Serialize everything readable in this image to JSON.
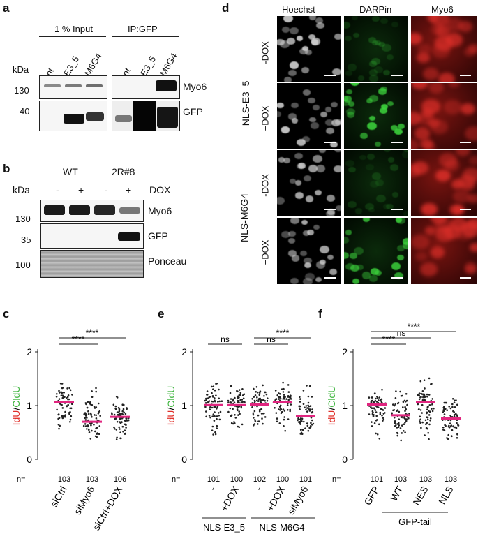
{
  "panels": {
    "a": {
      "letter": "a",
      "group_input": "1 % Input",
      "group_ip": "IP:GFP",
      "lanes": [
        "nt",
        "E3_5",
        "M6G4",
        "nt",
        "E3_5",
        "M6G4"
      ],
      "kda_label": "kDa",
      "markers": [
        "130",
        "40"
      ],
      "rows": [
        "Myo6",
        "GFP"
      ]
    },
    "b": {
      "letter": "b",
      "groups": [
        "WT",
        "2R#8"
      ],
      "dox_signs": [
        "-",
        "+",
        "-",
        "+"
      ],
      "dox_label": "DOX",
      "kda_label": "kDa",
      "markers": [
        "130",
        "35",
        "100"
      ],
      "rows": [
        "Myo6",
        "GFP",
        "Ponceau"
      ]
    },
    "d": {
      "letter": "d",
      "columns": [
        "Hoechst",
        "DARPin",
        "Myo6"
      ],
      "groups": [
        "NLS-E3_5",
        "NLS-M6G4"
      ],
      "rows": [
        "-DOX",
        "+DOX",
        "-DOX",
        "+DOX"
      ],
      "colors": {
        "hoechst": "#d8d8d8",
        "darpin": "#3cd23c",
        "myo6": "#e0302a",
        "bg": "#000000"
      }
    },
    "c": {
      "letter": "c",
      "n_label": "n=",
      "y_label_red": "IdU",
      "y_label_sep": "/",
      "y_label_green": "CldU",
      "y_ticks": [
        "0",
        "1",
        "2"
      ],
      "categories": [
        "siCtrl",
        "siMyo6",
        "siCtrl+DOX"
      ],
      "n_values": [
        "103",
        "103",
        "106"
      ],
      "sig": [
        {
          "label": "****"
        },
        {
          "label": "****"
        }
      ]
    },
    "e": {
      "letter": "e",
      "n_label": "n=",
      "y_label_red": "IdU",
      "y_label_sep": "/",
      "y_label_green": "CldU",
      "y_ticks": [
        "0",
        "1",
        "2"
      ],
      "categories": [
        "-",
        "+DOX",
        "-",
        "+DOX",
        "siMyo6"
      ],
      "n_values": [
        "101",
        "100",
        "102",
        "100",
        "101"
      ],
      "groups": [
        "NLS-E3_5",
        "NLS-M6G4"
      ],
      "sig": [
        {
          "label": "ns"
        },
        {
          "label": "ns"
        },
        {
          "label": "****"
        }
      ]
    },
    "f": {
      "letter": "f",
      "n_label": "n=",
      "y_label_red": "IdU",
      "y_label_sep": "/",
      "y_label_green": "CldU",
      "y_ticks": [
        "0",
        "1",
        "2"
      ],
      "categories": [
        "GFP",
        "WT",
        "NES",
        "NLS"
      ],
      "n_values": [
        "101",
        "103",
        "103",
        "103"
      ],
      "group": "GFP-tail",
      "sig": [
        {
          "label": "****"
        },
        {
          "label": "ns"
        },
        {
          "label": "****"
        }
      ]
    }
  },
  "chart_data": [
    {
      "type": "scatter",
      "panel": "c",
      "ylabel": "IdU/CldU",
      "ylim": [
        0,
        2
      ],
      "categories": [
        "siCtrl",
        "siMyo6",
        "siCtrl+DOX"
      ],
      "medians": [
        1.07,
        0.7,
        0.79
      ],
      "n": [
        103,
        103,
        106
      ],
      "spread": [
        [
          0.3,
          1.55
        ],
        [
          0.2,
          1.4
        ],
        [
          0.15,
          1.45
        ]
      ]
    },
    {
      "type": "scatter",
      "panel": "e",
      "ylabel": "IdU/CldU",
      "ylim": [
        0,
        2
      ],
      "categories": [
        "-",
        "+DOX",
        "-",
        "+DOX",
        "siMyo6"
      ],
      "medians": [
        1.01,
        1.01,
        1.02,
        1.06,
        0.8
      ],
      "n": [
        101,
        100,
        102,
        100,
        101
      ],
      "spread": [
        [
          0.25,
          1.75
        ],
        [
          0.3,
          1.45
        ],
        [
          0.35,
          1.55
        ],
        [
          0.45,
          1.5
        ],
        [
          0.3,
          1.6
        ]
      ]
    },
    {
      "type": "scatter",
      "panel": "f",
      "ylabel": "IdU/CldU",
      "ylim": [
        0,
        2
      ],
      "categories": [
        "GFP",
        "WT",
        "NES",
        "NLS"
      ],
      "medians": [
        1.02,
        0.82,
        1.07,
        0.76
      ],
      "n": [
        101,
        103,
        103,
        103
      ],
      "spread": [
        [
          0.35,
          1.55
        ],
        [
          0.25,
          1.45
        ],
        [
          0.2,
          1.65
        ],
        [
          0.2,
          1.4
        ]
      ]
    }
  ]
}
